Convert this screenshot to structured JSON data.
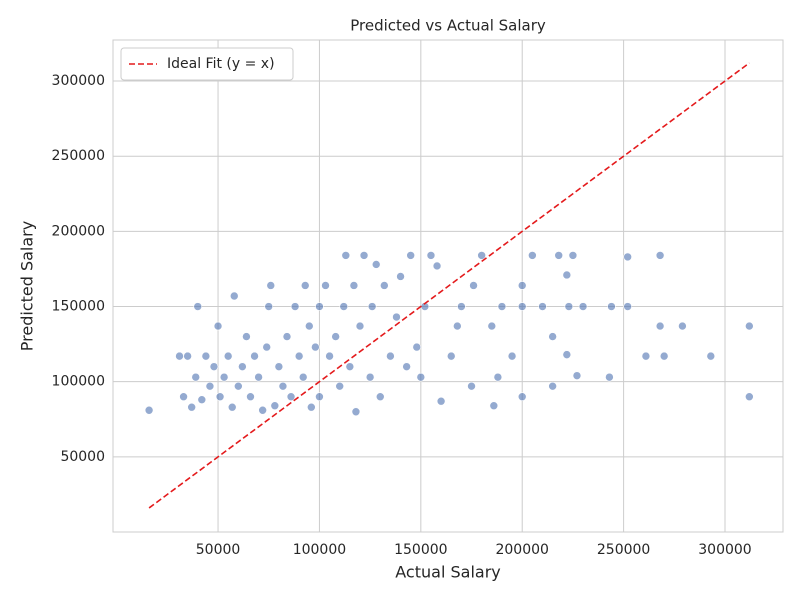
{
  "chart_data": {
    "type": "scatter",
    "title": "Predicted vs Actual Salary",
    "x_label": "Actual Salary",
    "y_label": "Predicted Salary",
    "xlim": [
      -1800,
      328600
    ],
    "ylim": [
      0,
      327300
    ],
    "xticks": [
      50000,
      100000,
      150000,
      200000,
      250000,
      300000
    ],
    "yticks": [
      50000,
      100000,
      150000,
      200000,
      250000,
      300000
    ],
    "grid": true,
    "legend": "upper left",
    "series": [
      {
        "type": "scatter",
        "color": "#4c72b0",
        "x": [
          16000,
          312000,
          312000,
          293000,
          279000,
          268000,
          268000,
          270000,
          261000,
          252000,
          252000,
          244000,
          243000,
          230000,
          227000,
          225000,
          222000,
          222000,
          223000,
          215000,
          215000,
          218000,
          210000,
          205000,
          200000,
          200000,
          200000,
          195000,
          190000,
          186000,
          188000,
          185000,
          180000,
          176000,
          175000,
          170000,
          168000,
          165000,
          160000,
          158000,
          155000,
          152000,
          150000,
          148000,
          145000,
          143000,
          140000,
          138000,
          135000,
          132000,
          130000,
          128000,
          126000,
          125000,
          122000,
          120000,
          118000,
          117000,
          115000,
          113000,
          112000,
          110000,
          108000,
          105000,
          103000,
          100000,
          100000,
          98000,
          96000,
          95000,
          93000,
          92000,
          90000,
          88000,
          86000,
          84000,
          82000,
          80000,
          78000,
          76000,
          75000,
          74000,
          72000,
          70000,
          68000,
          66000,
          64000,
          62000,
          60000,
          58000,
          57000,
          55000,
          53000,
          51000,
          50000,
          48000,
          46000,
          44000,
          42000,
          40000,
          39000,
          37000,
          35000,
          33000,
          31000
        ],
        "y": [
          81000,
          137000,
          90000,
          117000,
          137000,
          184000,
          137000,
          117000,
          117000,
          150000,
          183000,
          150000,
          103000,
          150000,
          104000,
          184000,
          171000,
          118000,
          150000,
          97000,
          130000,
          184000,
          150000,
          184000,
          90000,
          164000,
          150000,
          117000,
          150000,
          84000,
          103000,
          137000,
          184000,
          164000,
          97000,
          150000,
          137000,
          117000,
          87000,
          177000,
          184000,
          150000,
          103000,
          123000,
          184000,
          110000,
          170000,
          143000,
          117000,
          164000,
          90000,
          178000,
          150000,
          103000,
          184000,
          137000,
          80000,
          164000,
          110000,
          184000,
          150000,
          97000,
          130000,
          117000,
          164000,
          150000,
          90000,
          123000,
          83000,
          137000,
          164000,
          103000,
          117000,
          150000,
          90000,
          130000,
          97000,
          110000,
          84000,
          164000,
          150000,
          123000,
          81000,
          103000,
          117000,
          90000,
          130000,
          110000,
          97000,
          157000,
          83000,
          117000,
          103000,
          90000,
          137000,
          110000,
          97000,
          117000,
          88000,
          150000,
          103000,
          83000,
          117000,
          90000,
          117000
        ]
      },
      {
        "type": "line",
        "name": "Ideal Fit (y = x)",
        "color": "#e41a1c",
        "x": [
          16000,
          312000
        ],
        "y": [
          16000,
          312000
        ]
      }
    ]
  }
}
